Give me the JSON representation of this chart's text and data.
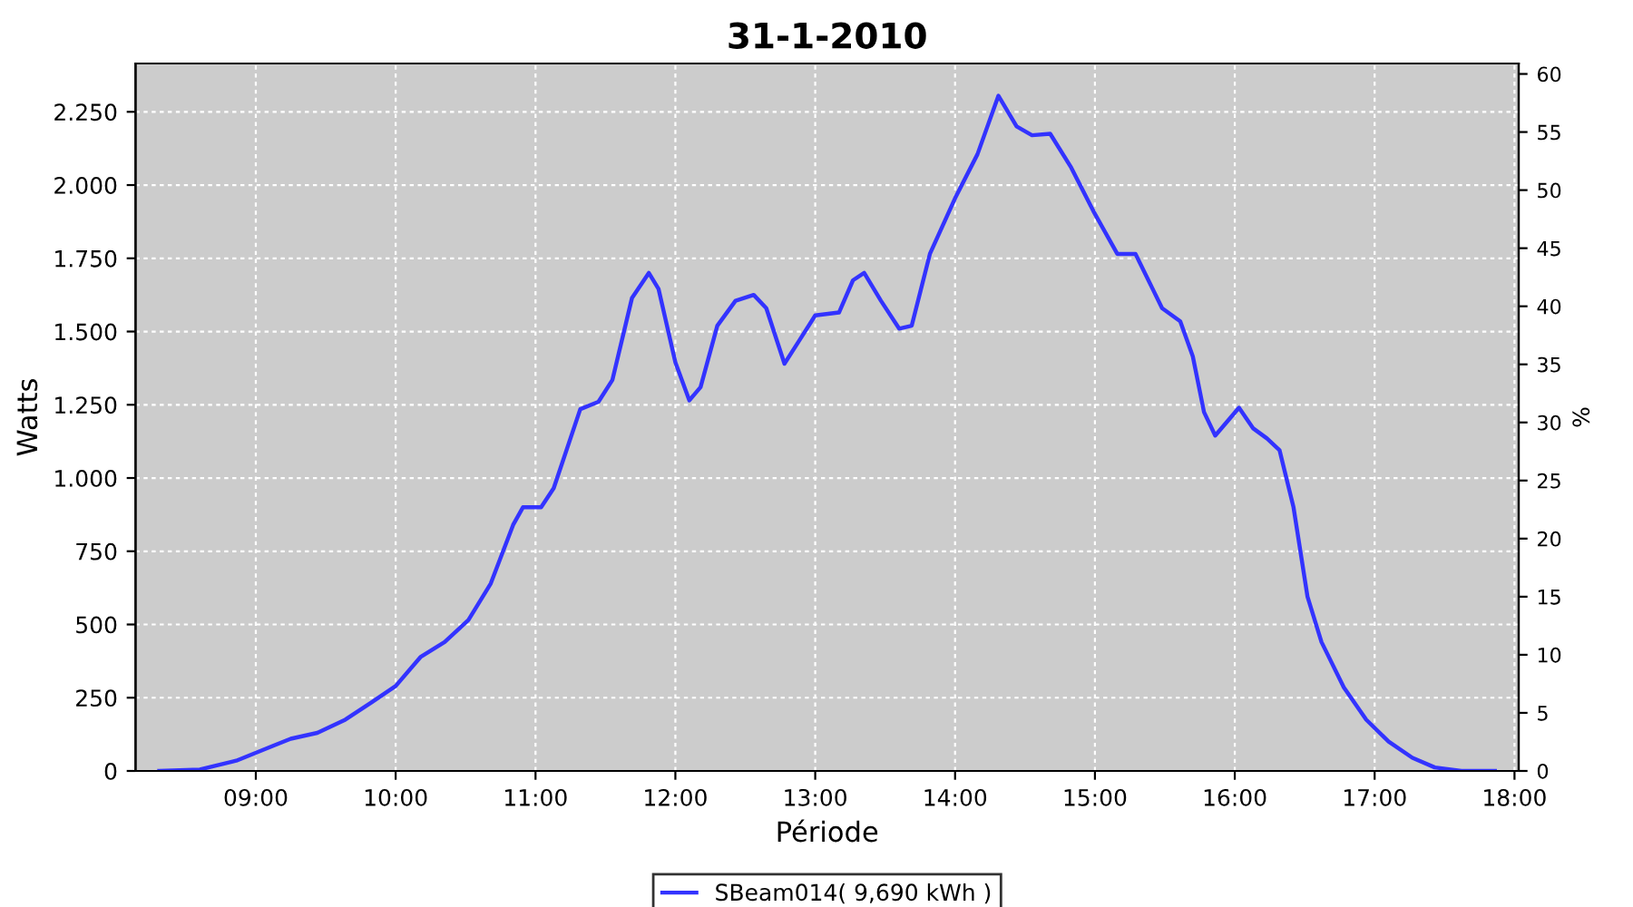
{
  "chart_data": {
    "type": "line",
    "title": "31-1-2010",
    "xlabel": "Période",
    "ylabel": "Watts",
    "y2label": "%",
    "xlim": [
      8.14,
      18.03
    ],
    "xticks": [
      {
        "value": 9,
        "label": "09:00"
      },
      {
        "value": 10,
        "label": "10:00"
      },
      {
        "value": 11,
        "label": "11:00"
      },
      {
        "value": 12,
        "label": "12:00"
      },
      {
        "value": 13,
        "label": "13:00"
      },
      {
        "value": 14,
        "label": "14:00"
      },
      {
        "value": 15,
        "label": "15:00"
      },
      {
        "value": 16,
        "label": "16:00"
      },
      {
        "value": 17,
        "label": "17:00"
      },
      {
        "value": 18,
        "label": "18:00"
      }
    ],
    "ylim": [
      0,
      2415
    ],
    "yticks": [
      0,
      250,
      500,
      750,
      {
        "value": 1000,
        "label": "1.000"
      },
      {
        "value": 1250,
        "label": "1.250"
      },
      {
        "value": 1500,
        "label": "1.500"
      },
      {
        "value": 1750,
        "label": "1.750"
      },
      {
        "value": 2000,
        "label": "2.000"
      },
      {
        "value": 2250,
        "label": "2.250"
      }
    ],
    "y2lim": [
      0,
      60.9
    ],
    "y2ticks": [
      0,
      5,
      10,
      15,
      20,
      25,
      30,
      35,
      40,
      45,
      50,
      55,
      60
    ],
    "grid": true,
    "legend": "bottom",
    "marker": "none",
    "line_style": "solid",
    "x": [
      8.31,
      8.6,
      8.86,
      9.12,
      9.25,
      9.44,
      9.64,
      9.83,
      10.0,
      10.18,
      10.35,
      10.52,
      10.68,
      10.84,
      10.91,
      11.04,
      11.13,
      11.32,
      11.45,
      11.55,
      11.69,
      11.81,
      11.88,
      12.0,
      12.1,
      12.18,
      12.3,
      12.43,
      12.56,
      12.65,
      12.78,
      12.88,
      13.0,
      13.17,
      13.27,
      13.35,
      13.47,
      13.6,
      13.69,
      13.82,
      14.0,
      14.16,
      14.31,
      14.44,
      14.55,
      14.68,
      14.83,
      14.99,
      15.16,
      15.29,
      15.48,
      15.61,
      15.7,
      15.78,
      15.86,
      15.95,
      16.03,
      16.13,
      16.23,
      16.32,
      16.42,
      16.52,
      16.62,
      16.78,
      16.94,
      17.1,
      17.27,
      17.43,
      17.62,
      17.86
    ],
    "series": [
      {
        "name": "SBeam014( 9,690 kWh )",
        "color": "#3333ff",
        "values": [
          0,
          5,
          35,
          85,
          110,
          130,
          175,
          235,
          290,
          390,
          440,
          515,
          640,
          840,
          900,
          900,
          965,
          1235,
          1260,
          1335,
          1615,
          1700,
          1645,
          1395,
          1265,
          1310,
          1520,
          1605,
          1625,
          1580,
          1390,
          1465,
          1555,
          1565,
          1675,
          1700,
          1605,
          1510,
          1520,
          1765,
          1955,
          2105,
          2305,
          2200,
          2170,
          2175,
          2060,
          1910,
          1765,
          1765,
          1580,
          1535,
          1415,
          1225,
          1145,
          1195,
          1240,
          1170,
          1135,
          1095,
          900,
          595,
          440,
          285,
          175,
          100,
          45,
          12,
          0,
          0
        ]
      }
    ]
  }
}
